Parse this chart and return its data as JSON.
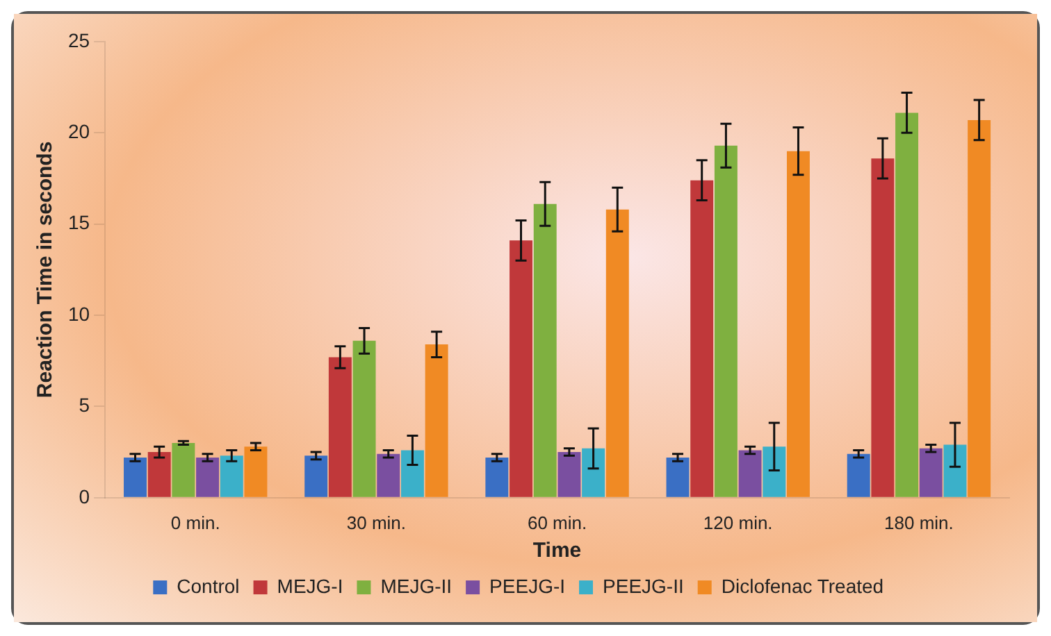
{
  "chart_data": {
    "type": "bar",
    "xlabel": "Time",
    "ylabel": "Reaction Time in seconds",
    "categories": [
      "0 min.",
      "30 min.",
      "60 min.",
      "120 min.",
      "180 min."
    ],
    "series": [
      {
        "name": "Control",
        "color": "#3a6fc4",
        "values": [
          2.2,
          2.3,
          2.2,
          2.2,
          2.4
        ],
        "errors": [
          0.2,
          0.2,
          0.2,
          0.2,
          0.2
        ]
      },
      {
        "name": "MEJG-I",
        "color": "#c0383a",
        "values": [
          2.5,
          7.7,
          14.1,
          17.4,
          18.6
        ],
        "errors": [
          0.3,
          0.6,
          1.1,
          1.1,
          1.1
        ]
      },
      {
        "name": "MEJG-II",
        "color": "#7fb040",
        "values": [
          3.0,
          8.6,
          16.1,
          19.3,
          21.1
        ],
        "errors": [
          0.1,
          0.7,
          1.2,
          1.2,
          1.1
        ]
      },
      {
        "name": "PEEJG-I",
        "color": "#7a4fa0",
        "values": [
          2.2,
          2.4,
          2.5,
          2.6,
          2.7
        ],
        "errors": [
          0.2,
          0.2,
          0.2,
          0.2,
          0.2
        ]
      },
      {
        "name": "PEEJG-II",
        "color": "#3bb0c9",
        "values": [
          2.3,
          2.6,
          2.7,
          2.8,
          2.9
        ],
        "errors": [
          0.3,
          0.8,
          1.1,
          1.3,
          1.2
        ]
      },
      {
        "name": "Diclofenac Treated",
        "color": "#f08a24",
        "values": [
          2.8,
          8.4,
          15.8,
          19.0,
          20.7
        ],
        "errors": [
          0.2,
          0.7,
          1.2,
          1.3,
          1.1
        ]
      }
    ],
    "ylim": [
      0,
      25
    ],
    "yticks": [
      0,
      5,
      10,
      15,
      20,
      25
    ],
    "grid": false,
    "legend": "bottom"
  }
}
